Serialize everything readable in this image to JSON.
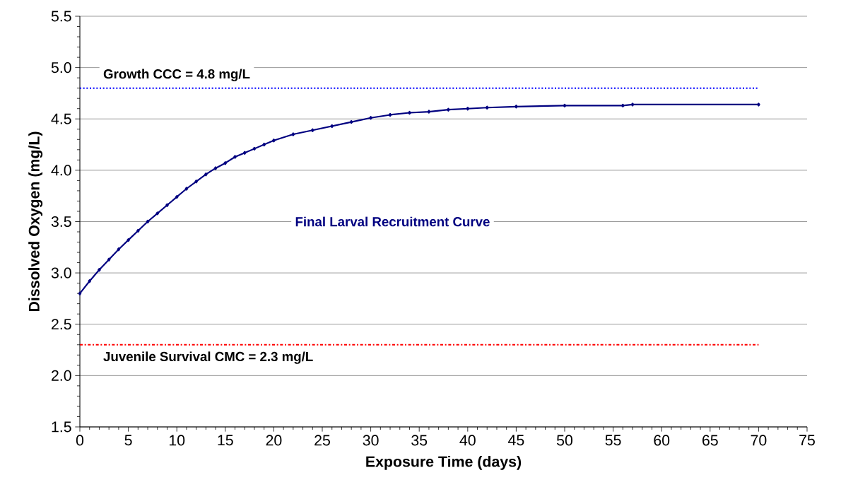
{
  "chart_data": {
    "type": "line",
    "xlabel": "Exposure Time (days)",
    "ylabel": "Dissolved Oxygen (mg/L)",
    "xlim": [
      0,
      75
    ],
    "ylim": [
      1.5,
      5.5
    ],
    "xticks": [
      0,
      5,
      10,
      15,
      20,
      25,
      30,
      35,
      40,
      45,
      50,
      55,
      60,
      65,
      70,
      75
    ],
    "yticks": [
      {
        "value": 1.5,
        "label": "1.5"
      },
      {
        "value": 2.0,
        "label": "2.0"
      },
      {
        "value": 2.5,
        "label": "2.5"
      },
      {
        "value": 3.0,
        "label": "3.0"
      },
      {
        "value": 3.5,
        "label": "3.5"
      },
      {
        "value": 4.0,
        "label": "4.0"
      },
      {
        "value": 4.5,
        "label": "4.5"
      },
      {
        "value": 5.0,
        "label": "5.0"
      },
      {
        "value": 5.5,
        "label": "5.5"
      }
    ],
    "grid": "y",
    "legend": false,
    "marker": "diamond",
    "line_style": "solid",
    "series": [
      {
        "name": "Final Larval Recruitment Curve",
        "color": "#000080",
        "x": [
          0,
          1,
          2,
          3,
          4,
          5,
          6,
          7,
          8,
          9,
          10,
          11,
          12,
          13,
          14,
          15,
          16,
          17,
          18,
          19,
          20,
          22,
          24,
          26,
          28,
          30,
          32,
          34,
          36,
          38,
          40,
          42,
          45,
          50,
          56,
          57,
          70
        ],
        "values": [
          2.8,
          2.92,
          3.03,
          3.13,
          3.23,
          3.32,
          3.41,
          3.5,
          3.58,
          3.66,
          3.74,
          3.82,
          3.89,
          3.96,
          4.02,
          4.07,
          4.13,
          4.17,
          4.21,
          4.25,
          4.29,
          4.35,
          4.39,
          4.43,
          4.47,
          4.51,
          4.54,
          4.56,
          4.57,
          4.59,
          4.6,
          4.61,
          4.62,
          4.63,
          4.63,
          4.64,
          4.64
        ]
      }
    ],
    "ref_lines": [
      {
        "axis": "y",
        "value": 4.8,
        "label": "Growth CCC = 4.8 mg/L",
        "color": "#0000ff",
        "line_style": "dotted"
      },
      {
        "axis": "y",
        "value": 2.3,
        "label": "Juvenile Survival CMC = 2.3 mg/L",
        "color": "#ff0000",
        "line_style": "dashdot"
      }
    ]
  }
}
